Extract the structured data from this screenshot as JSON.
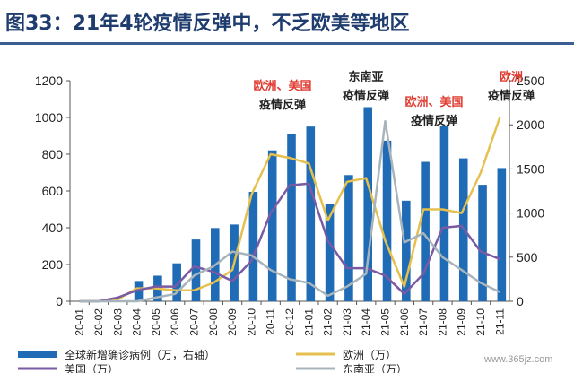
{
  "header": {
    "title": "图33：21年4轮疫情反弹中，不乏欧美等地区"
  },
  "watermark": "www.365jz.com",
  "chart_data": {
    "type": "bar+line",
    "categories": [
      "20-01",
      "20-02",
      "20-03",
      "20-04",
      "20-05",
      "20-06",
      "20-07",
      "20-08",
      "20-09",
      "20-10",
      "20-11",
      "20-12",
      "21-01",
      "21-02",
      "21-03",
      "21-04",
      "21-05",
      "21-06",
      "21-07",
      "21-08",
      "21-09",
      "21-10",
      "21-11"
    ],
    "left_axis": {
      "min": 0,
      "max": 1200,
      "ticks": [
        0,
        200,
        400,
        600,
        800,
        1000,
        1200
      ]
    },
    "right_axis": {
      "min": 0,
      "max": 2500,
      "ticks": [
        0,
        500,
        1000,
        1500,
        2000,
        2500
      ]
    },
    "series": [
      {
        "name": "全球新增确诊病例（万，右轴）",
        "kind": "bar",
        "axis": "right",
        "color": "#1f6bb5",
        "values": [
          0,
          0,
          0,
          230,
          290,
          430,
          700,
          830,
          870,
          1240,
          1710,
          1900,
          1980,
          1100,
          1430,
          2200,
          1820,
          1140,
          1580,
          1990,
          1620,
          1320,
          1510
        ]
      },
      {
        "name": "欧洲（万）",
        "kind": "line",
        "axis": "left",
        "color": "#e6c04e",
        "values": [
          0,
          0,
          10,
          70,
          70,
          60,
          60,
          100,
          170,
          580,
          800,
          780,
          750,
          440,
          650,
          670,
          330,
          80,
          500,
          500,
          480,
          700,
          1000
        ]
      },
      {
        "name": "美国（万）",
        "kind": "line",
        "axis": "left",
        "color": "#7a5aa3",
        "values": [
          0,
          0,
          20,
          60,
          80,
          80,
          190,
          160,
          110,
          220,
          480,
          630,
          640,
          330,
          180,
          180,
          140,
          40,
          150,
          400,
          410,
          270,
          230
        ]
      },
      {
        "name": "东南亚（万）",
        "kind": "line",
        "axis": "left",
        "color": "#a8b4bb",
        "values": [
          0,
          0,
          0,
          0,
          20,
          40,
          140,
          190,
          270,
          250,
          170,
          120,
          100,
          30,
          80,
          150,
          980,
          320,
          370,
          240,
          170,
          100,
          50
        ]
      }
    ],
    "annotations": [
      {
        "lines": [
          "欧洲、美国",
          "疫情反弹"
        ],
        "color": [
          "#e03c31",
          "#222222"
        ]
      },
      {
        "lines": [
          "东南亚",
          "疫情反弹"
        ],
        "color": [
          "#222222",
          "#222222"
        ]
      },
      {
        "lines": [
          "欧洲、美国",
          "疫情反弹"
        ],
        "color": [
          "#e03c31",
          "#222222"
        ]
      },
      {
        "lines": [
          "欧洲",
          "疫情反弹"
        ],
        "color": [
          "#e03c31",
          "#222222"
        ]
      }
    ],
    "legend": {
      "placement": "bottom"
    }
  }
}
